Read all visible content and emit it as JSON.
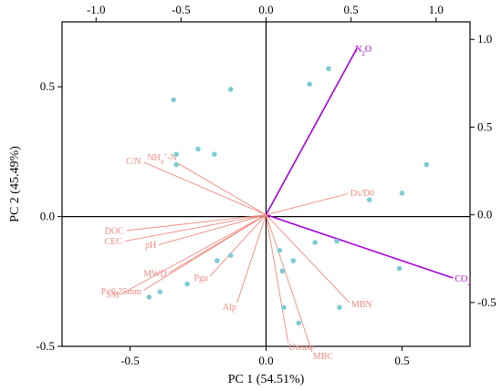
{
  "chart_data": {
    "type": "scatter",
    "xlabel": "PC 1 (54.51%)",
    "ylabel": "PC 2 (45.49%)",
    "xlim": [
      -0.75,
      0.75
    ],
    "ylim": [
      -0.5,
      0.75
    ],
    "top_xlim": [
      -1.2,
      1.2
    ],
    "right_ylim": [
      -0.75,
      1.1
    ],
    "bottom_ticks": [
      "-0.5",
      "0.0",
      "0.5"
    ],
    "bottom_tick_values": [
      -0.5,
      0.0,
      0.5
    ],
    "left_ticks": [
      "-0.5",
      "0.0",
      "0.5"
    ],
    "left_tick_values": [
      -0.5,
      0.0,
      0.5
    ],
    "top_ticks": [
      "-1.0",
      "-0.5",
      "0.0",
      "0.5",
      "1.0"
    ],
    "top_tick_values": [
      -1.0,
      -0.5,
      0.0,
      0.5,
      1.0
    ],
    "right_ticks": [
      "-0.5",
      "0.0",
      "0.5",
      "1.0"
    ],
    "right_tick_values": [
      -0.5,
      0.0,
      0.5,
      1.0
    ],
    "points": [
      {
        "x": -0.34,
        "y": 0.45
      },
      {
        "x": -0.13,
        "y": 0.49
      },
      {
        "x": 0.16,
        "y": 0.51
      },
      {
        "x": 0.23,
        "y": 0.57
      },
      {
        "x": -0.25,
        "y": 0.26
      },
      {
        "x": -0.19,
        "y": 0.24
      },
      {
        "x": -0.33,
        "y": 0.24
      },
      {
        "x": -0.33,
        "y": 0.2
      },
      {
        "x": 0.59,
        "y": 0.2
      },
      {
        "x": 0.5,
        "y": 0.09
      },
      {
        "x": 0.38,
        "y": 0.065
      },
      {
        "x": 0.18,
        "y": -0.1
      },
      {
        "x": 0.26,
        "y": -0.095
      },
      {
        "x": 0.05,
        "y": -0.13
      },
      {
        "x": 0.1,
        "y": -0.17
      },
      {
        "x": 0.06,
        "y": -0.21
      },
      {
        "x": 0.49,
        "y": -0.2
      },
      {
        "x": -0.18,
        "y": -0.17
      },
      {
        "x": -0.13,
        "y": -0.15
      },
      {
        "x": -0.29,
        "y": -0.26
      },
      {
        "x": -0.39,
        "y": -0.29
      },
      {
        "x": -0.43,
        "y": -0.31
      },
      {
        "x": 0.065,
        "y": -0.35
      },
      {
        "x": 0.27,
        "y": -0.35
      },
      {
        "x": 0.12,
        "y": -0.41
      }
    ],
    "loadings": [
      {
        "name": "N2O",
        "label": "N",
        "sub": "2",
        "label_tail": "O",
        "x": 0.535,
        "y": 0.95,
        "color": "#a400d8",
        "strong": true
      },
      {
        "name": "CO2",
        "label": "CO",
        "sub": "2",
        "label_tail": "",
        "x": 1.1,
        "y": -0.36,
        "color": "#a400d8",
        "strong": true
      },
      {
        "name": "Ds/D0",
        "label": "Ds/D0",
        "x": 0.48,
        "y": 0.12,
        "color": "#f08a80"
      },
      {
        "name": "MBN",
        "label": "MBN",
        "x": 0.49,
        "y": -0.5,
        "color": "#f08a80"
      },
      {
        "name": "MBC",
        "label": "MBC",
        "x": 0.27,
        "y": -0.78,
        "color": "#f08a80"
      },
      {
        "name": "Urease",
        "label": "Urease",
        "x": 0.13,
        "y": -0.73,
        "color": "#f08a80"
      },
      {
        "name": "Alp",
        "label": "Alp",
        "x": -0.17,
        "y": -0.5,
        "color": "#f08a80"
      },
      {
        "name": "MWD",
        "label": "MWD",
        "x": -0.57,
        "y": -0.33,
        "color": "#f08a80"
      },
      {
        "name": "Pgu",
        "label": "Pgu",
        "x": -0.33,
        "y": -0.35,
        "color": "#f08a80"
      },
      {
        "name": "SM",
        "label": "SM",
        "x": -0.85,
        "y": -0.45,
        "color": "#f08a80"
      },
      {
        "name": "P<0.25mm",
        "label": "P<0.25mm",
        "x": -0.72,
        "y": -0.43,
        "color": "#f08a80"
      },
      {
        "name": "pH",
        "label": "pH",
        "x": -0.63,
        "y": -0.17,
        "color": "#f08a80"
      },
      {
        "name": "CEC",
        "label": "CEC",
        "x": -0.83,
        "y": -0.15,
        "color": "#f08a80"
      },
      {
        "name": "DOC",
        "label": "DOC",
        "x": -0.82,
        "y": -0.09,
        "color": "#f08a80"
      },
      {
        "name": "C/N",
        "label": "C/N",
        "x": -0.72,
        "y": 0.3,
        "color": "#f08a80"
      },
      {
        "name": "NH4+-N",
        "label": "NH",
        "sub": "4",
        "sup": "+",
        "label_tail": "-N",
        "x": -0.53,
        "y": 0.3,
        "color": "#f08a80"
      }
    ],
    "point_color": "#7ecdd3",
    "axis_color": "#000000"
  }
}
